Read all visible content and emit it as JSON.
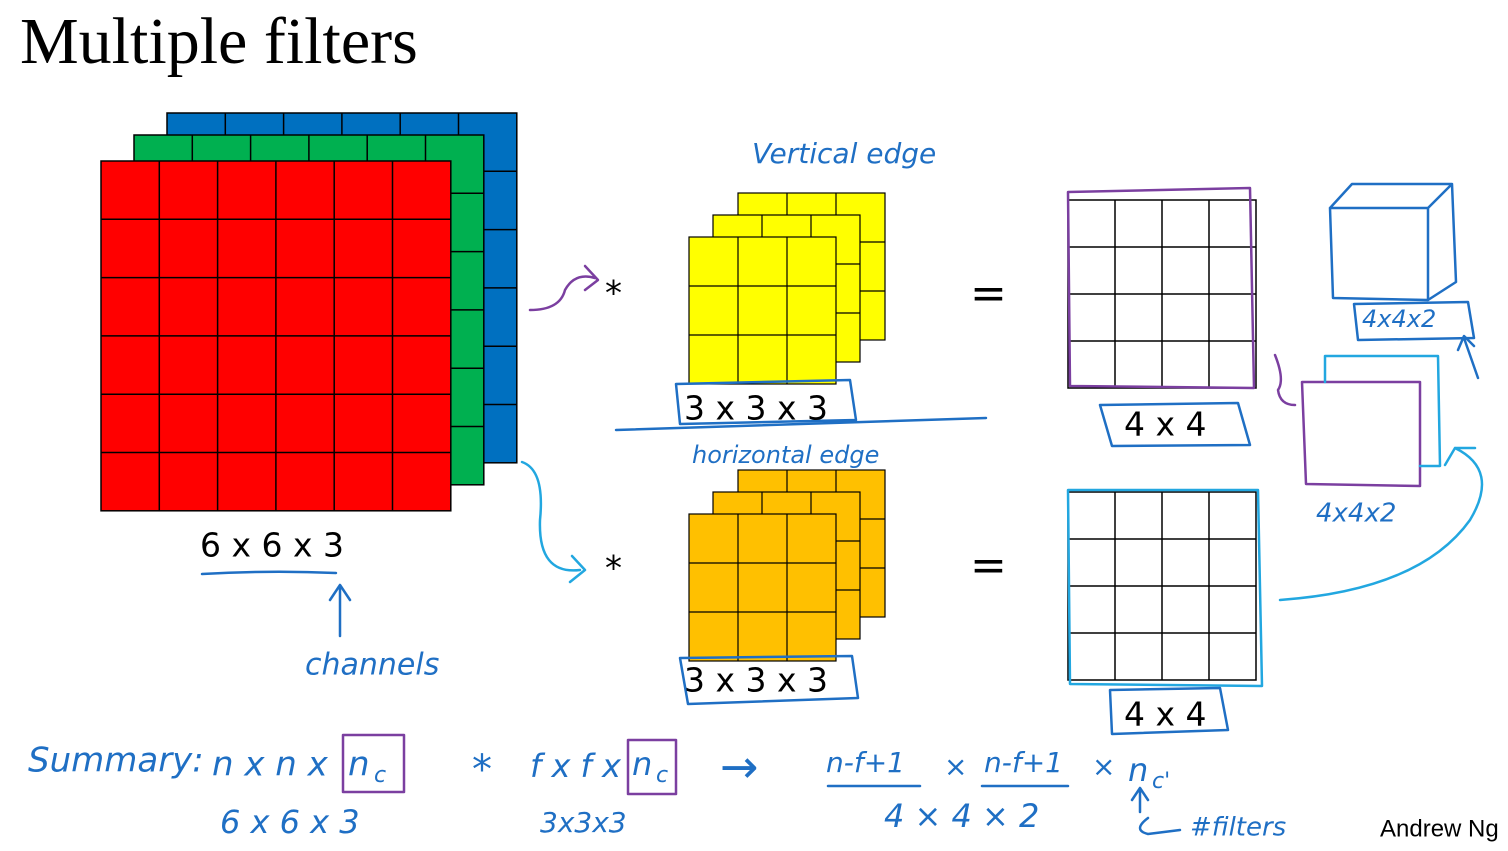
{
  "title": "Multiple filters",
  "input": {
    "label": "6 x 6 x 3",
    "note": "channels"
  },
  "filters": [
    {
      "note": "Vertical edge",
      "operator": "*",
      "label": "3 x 3 x 3",
      "equals": "=",
      "output": "4 x 4"
    },
    {
      "note": "horizontal edge",
      "operator": "*",
      "label": "3 x 3 x 3",
      "equals": "=",
      "output": "4 x 4"
    }
  ],
  "stack": {
    "cube_label": "4x4x2",
    "label": "4x4x2"
  },
  "summary": {
    "heading": "Summary:",
    "input": "n x n x",
    "input_n": "n",
    "input_sub": "c",
    "input_example": "6 x 6 x 3",
    "operator": "*",
    "filter": "f x f x",
    "filter_n": "n",
    "filter_sub": "c",
    "filter_example": "3x3x3",
    "arrow": "→",
    "out_h": "n-f+1",
    "times1": "×",
    "out_w": "n-f+1",
    "times2": "×",
    "out_n": "n",
    "out_sub": "c'",
    "out_example": "4   ×   4   × 2",
    "out_note": "#filters"
  },
  "footer": "Andrew Ng"
}
